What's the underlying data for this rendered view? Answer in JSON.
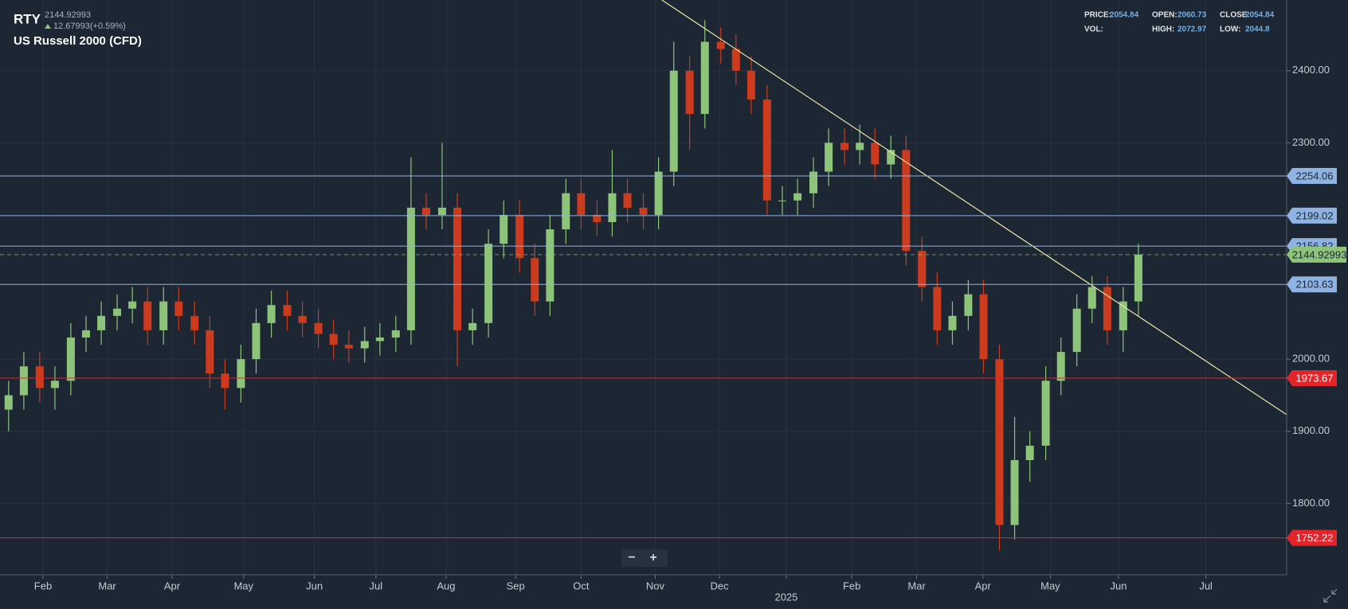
{
  "header": {
    "symbol": "RTY",
    "price": "2144.92993",
    "change": "12.67993(+0.59%)",
    "name": "US Russell 2000 (CFD)"
  },
  "info_panel": [
    {
      "label": "PRICE:",
      "value": 2054.84
    },
    {
      "label": "OPEN:",
      "value": 2060.73
    },
    {
      "label": "CLOSE:",
      "value": 2054.84
    },
    {
      "label": "VOL:"
    },
    {
      "label": "HIGH:",
      "value": 2072.97
    },
    {
      "label": "LOW:",
      "value": 2044.8
    }
  ],
  "zoom_controls": [
    "−",
    "+"
  ],
  "chart_data": {
    "type": "candlestick",
    "up_color": "#8dc47a",
    "down_color": "#cc3b1e",
    "xlim": [
      1.35,
      20.79
    ],
    "ylim": [
      1701,
      2498
    ],
    "grid": true,
    "xticks": [
      {
        "value": 2.0,
        "label": "Feb"
      },
      {
        "value": 2.97,
        "label": "Mar"
      },
      {
        "value": 3.95,
        "label": "Apr"
      },
      {
        "value": 5.03,
        "label": "May"
      },
      {
        "value": 6.1,
        "label": "Jun"
      },
      {
        "value": 7.03,
        "label": "Jul"
      },
      {
        "value": 8.09,
        "label": "Aug"
      },
      {
        "value": 9.14,
        "label": "Sep"
      },
      {
        "value": 10.13,
        "label": "Oct"
      },
      {
        "value": 11.25,
        "label": "Nov"
      },
      {
        "value": 12.22,
        "label": "Dec"
      },
      {
        "value": 13.23,
        "label": "2025"
      },
      {
        "value": 14.22,
        "label": "Feb"
      },
      {
        "value": 15.2,
        "label": "Mar"
      },
      {
        "value": 16.2,
        "label": "Apr"
      },
      {
        "value": 17.22,
        "label": "May"
      },
      {
        "value": 18.25,
        "label": "Jun"
      },
      {
        "value": 19.57,
        "label": "Jul"
      }
    ],
    "yticks": [
      {
        "value": 1800,
        "label": "1800.00"
      },
      {
        "value": 1900,
        "label": "1900.00"
      },
      {
        "value": 2000,
        "label": "2000.00"
      },
      {
        "value": 2300,
        "label": "2300.00"
      },
      {
        "value": 2400,
        "label": "2400.00"
      }
    ],
    "x": [
      1.48,
      1.71,
      1.95,
      2.18,
      2.42,
      2.65,
      2.88,
      3.12,
      3.35,
      3.58,
      3.82,
      4.05,
      4.29,
      4.52,
      4.75,
      4.99,
      5.22,
      5.45,
      5.69,
      5.92,
      6.16,
      6.39,
      6.62,
      6.86,
      7.09,
      7.33,
      7.56,
      7.79,
      8.03,
      8.26,
      8.49,
      8.73,
      8.96,
      9.2,
      9.43,
      9.66,
      9.9,
      10.13,
      10.37,
      10.6,
      10.83,
      11.07,
      11.3,
      11.53,
      11.77,
      12.0,
      12.24,
      12.47,
      12.7,
      12.94,
      13.17,
      13.4,
      13.64,
      13.87,
      14.11,
      14.34,
      14.57,
      14.81,
      15.04,
      15.28,
      15.51,
      15.74,
      15.98,
      16.21,
      16.45,
      16.68,
      16.91,
      17.15,
      17.38,
      17.62,
      17.85,
      18.08,
      18.32,
      18.55
    ],
    "open": [
      1930,
      1950,
      1990,
      1960,
      1970,
      2030,
      2040,
      2060,
      2070,
      2080,
      2040,
      2080,
      2060,
      2040,
      1980,
      1960,
      2000,
      2050,
      2075,
      2060,
      2050,
      2035,
      2020,
      2015,
      2025,
      2030,
      2040,
      2210,
      2200,
      2210,
      2040,
      2050,
      2160,
      2200,
      2140,
      2080,
      2180,
      2230,
      2200,
      2190,
      2230,
      2210,
      2200,
      2260,
      2400,
      2340,
      2440,
      2430,
      2400,
      2360,
      2220,
      2220,
      2230,
      2260,
      2300,
      2290,
      2300,
      2270,
      2290,
      2150,
      2100,
      2040,
      2060,
      2090,
      2000,
      1770,
      1860,
      1880,
      1970,
      2010,
      2070,
      2100,
      2040,
      2080
    ],
    "high": [
      1970,
      2010,
      2010,
      1990,
      2050,
      2060,
      2080,
      2090,
      2100,
      2100,
      2100,
      2100,
      2080,
      2060,
      2000,
      2020,
      2070,
      2095,
      2095,
      2080,
      2070,
      2055,
      2040,
      2045,
      2050,
      2060,
      2280,
      2230,
      2300,
      2230,
      2070,
      2180,
      2220,
      2220,
      2160,
      2200,
      2250,
      2250,
      2220,
      2290,
      2250,
      2230,
      2280,
      2440,
      2420,
      2470,
      2460,
      2450,
      2420,
      2380,
      2240,
      2250,
      2280,
      2320,
      2320,
      2325,
      2320,
      2310,
      2310,
      2170,
      2120,
      2080,
      2110,
      2110,
      2020,
      1920,
      1900,
      1990,
      2030,
      2090,
      2115,
      2115,
      2100,
      2160
    ],
    "low": [
      1900,
      1930,
      1940,
      1930,
      1950,
      2010,
      2020,
      2040,
      2050,
      2020,
      2020,
      2040,
      2020,
      1960,
      1930,
      1940,
      1980,
      2030,
      2040,
      2030,
      2015,
      2000,
      1995,
      1995,
      2005,
      2010,
      2020,
      2180,
      2180,
      1990,
      2020,
      2030,
      2140,
      2120,
      2060,
      2060,
      2160,
      2180,
      2170,
      2170,
      2190,
      2180,
      2180,
      2240,
      2290,
      2320,
      2410,
      2380,
      2340,
      2200,
      2200,
      2200,
      2210,
      2240,
      2270,
      2270,
      2250,
      2250,
      2130,
      2080,
      2020,
      2020,
      2040,
      1980,
      1735,
      1750,
      1830,
      1860,
      1950,
      1990,
      2050,
      2020,
      2010,
      2060
    ],
    "close": [
      1950,
      1990,
      1960,
      1970,
      2030,
      2040,
      2060,
      2070,
      2080,
      2040,
      2080,
      2060,
      2040,
      1980,
      1960,
      2000,
      2050,
      2075,
      2060,
      2050,
      2035,
      2020,
      2015,
      2025,
      2030,
      2040,
      2210,
      2200,
      2210,
      2040,
      2050,
      2160,
      2200,
      2140,
      2080,
      2180,
      2230,
      2200,
      2190,
      2230,
      2210,
      2200,
      2260,
      2400,
      2340,
      2440,
      2430,
      2400,
      2360,
      2220,
      2220,
      2230,
      2260,
      2300,
      2290,
      2300,
      2270,
      2290,
      2150,
      2100,
      2040,
      2060,
      2090,
      2000,
      1770,
      1860,
      1880,
      1970,
      2010,
      2070,
      2100,
      2040,
      2080,
      2144.93
    ],
    "price_lines": [
      {
        "value": 2254.06,
        "color": "#8fb3e3",
        "text_color": "#1d2733"
      },
      {
        "value": 2199.02,
        "color": "#8fb3e3",
        "text_color": "#1d2733"
      },
      {
        "value": 2156.82,
        "color": "#8fb3e3",
        "text_color": "#1d2733"
      },
      {
        "value": 2103.63,
        "color": "#8fb3e3",
        "text_color": "#1d2733"
      },
      {
        "value": 1973.67,
        "color": "#e3242b",
        "text_color": "#ffffff"
      },
      {
        "value": 1752.22,
        "color": "#e3242b",
        "text_color": "#ffffff"
      }
    ],
    "last_price": {
      "value": 2144.92993,
      "color": "#8dc47a",
      "text_color": "#1d2733"
    },
    "trendline": {
      "x": [
        11.35,
        20.79
      ],
      "y": [
        2498,
        1923
      ],
      "color": "#e9e7a4"
    }
  }
}
